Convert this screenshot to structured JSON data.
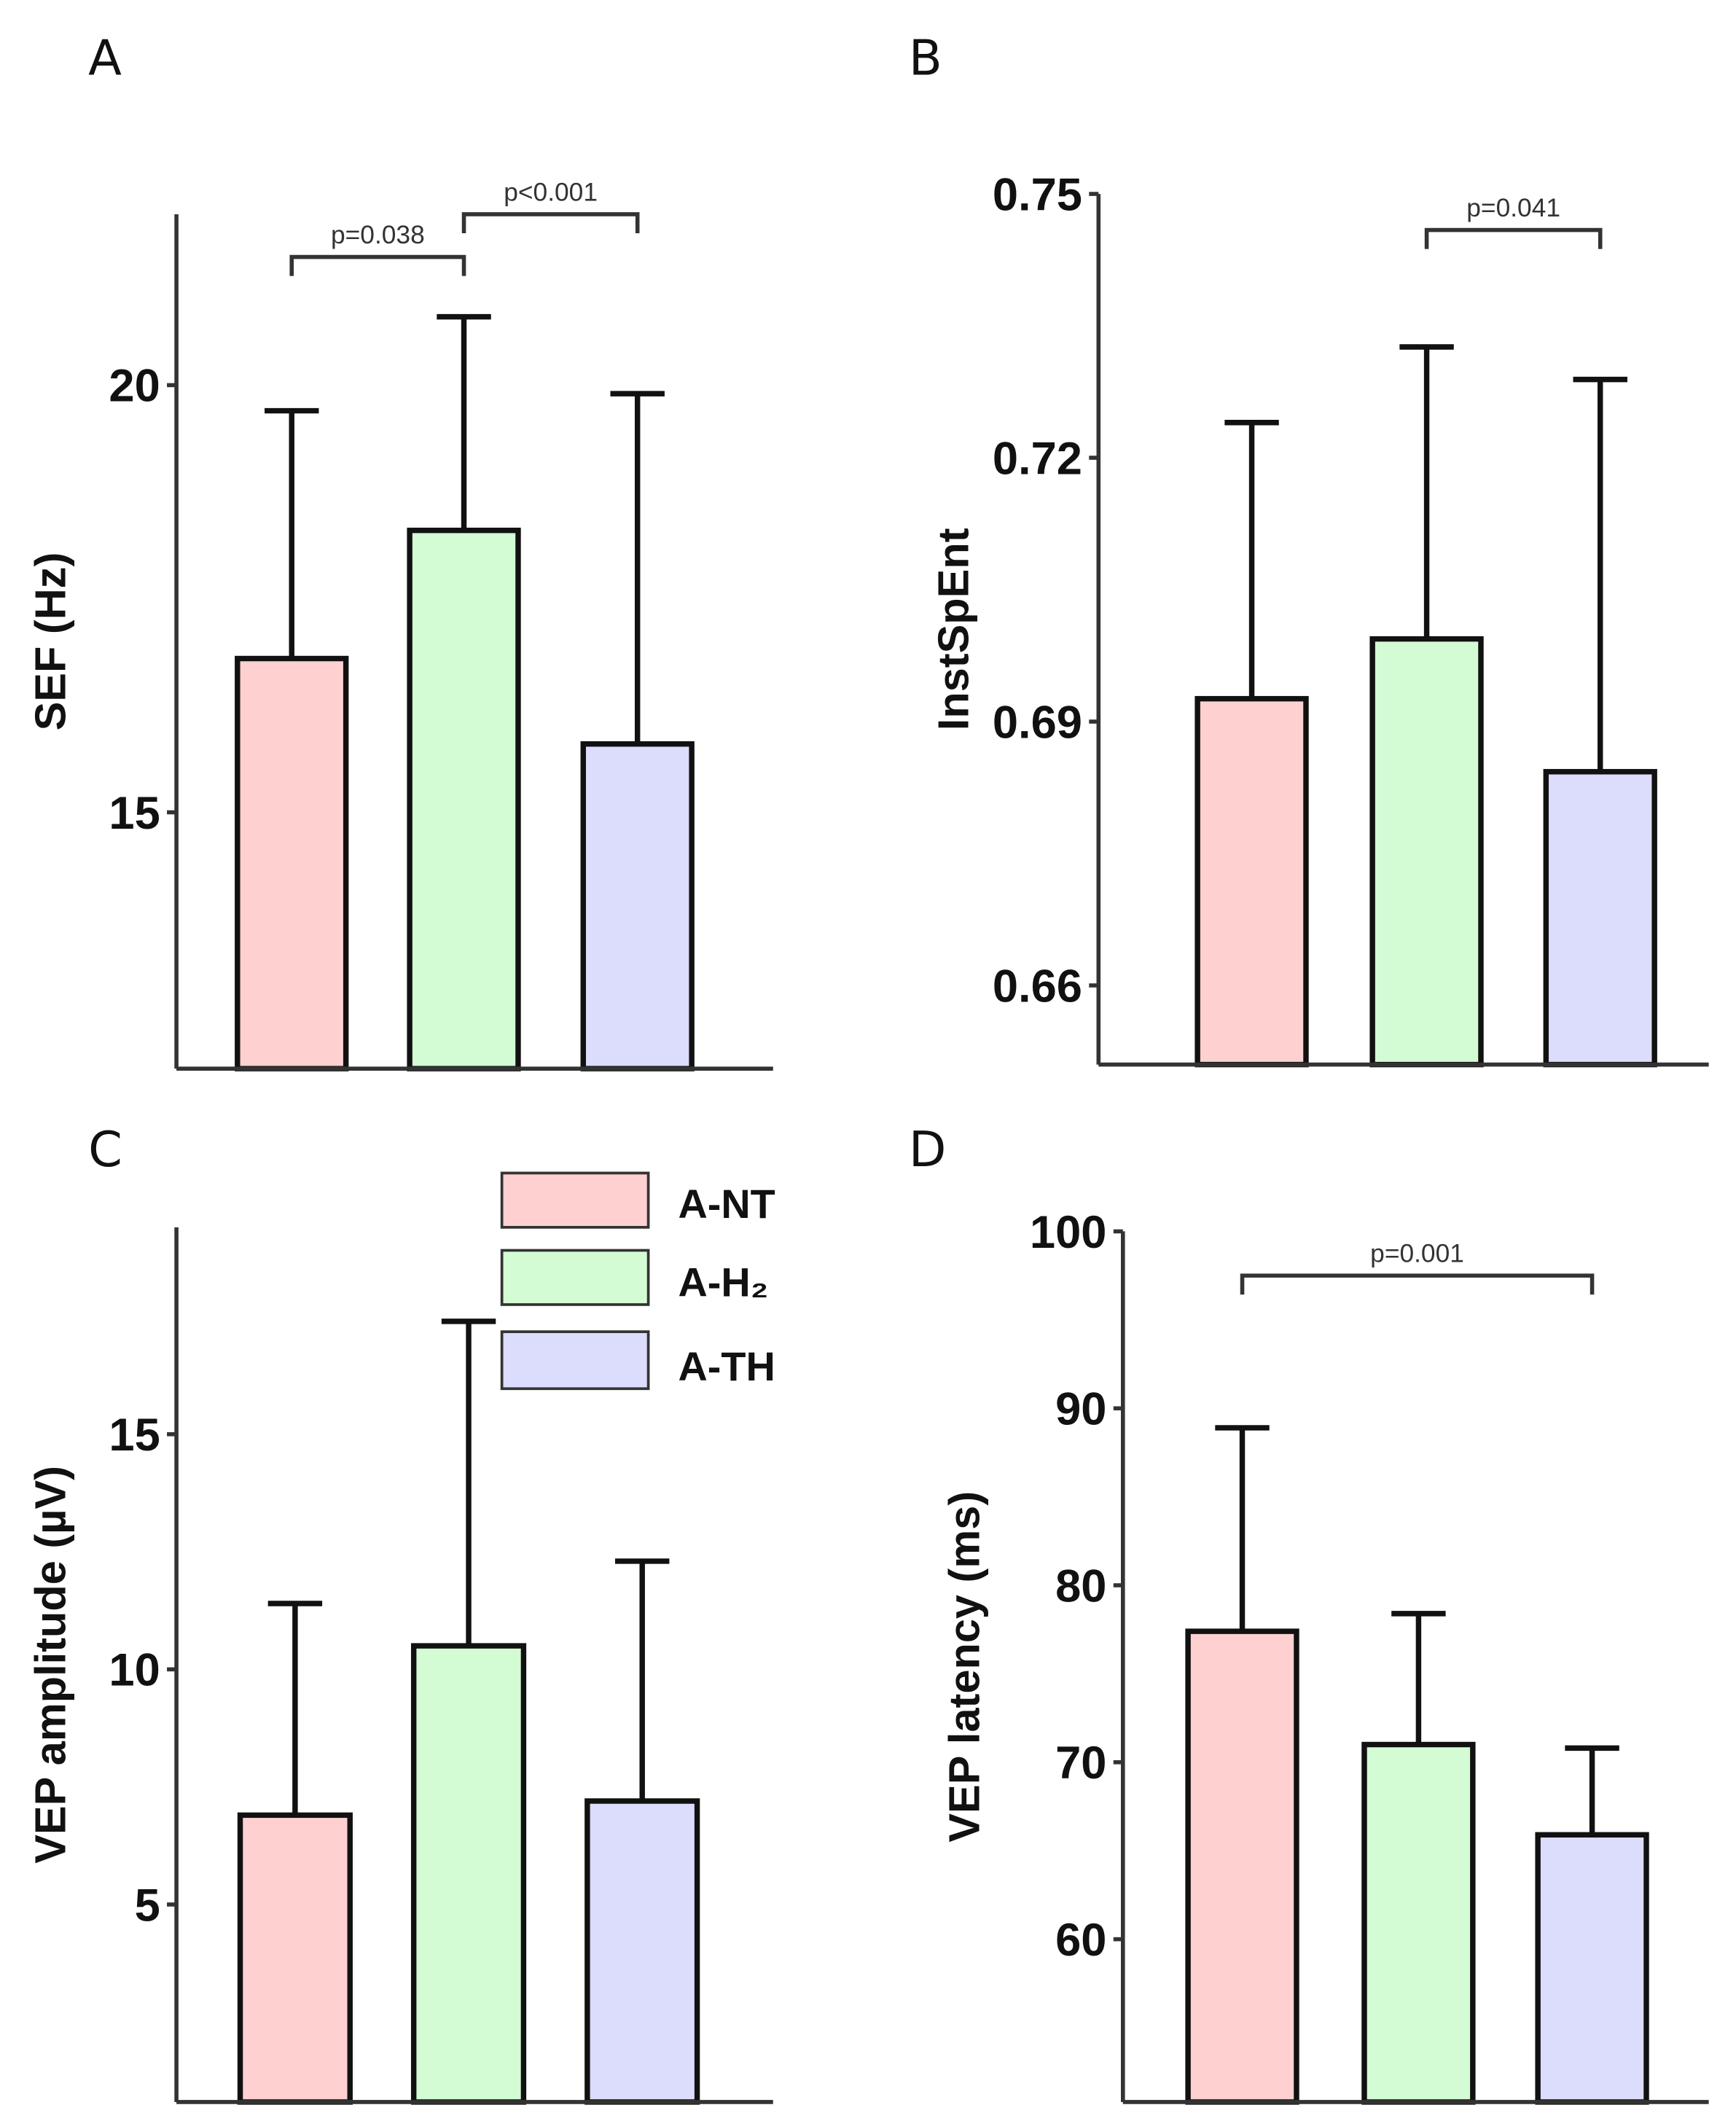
{
  "colors": {
    "A-NT": "#ffd0d0",
    "A-H2": "#d4fcd4",
    "A-TH": "#dcdcfc",
    "axis": "#333333",
    "bar_edge": "#111111"
  },
  "legend": {
    "items": [
      {
        "label": "A-NT",
        "color": "#ffd0d0"
      },
      {
        "label": "A-H₂",
        "color": "#d4fcd4"
      },
      {
        "label": "A-TH",
        "color": "#dcdcfc"
      }
    ]
  },
  "chart_data": [
    {
      "panel": "A",
      "type": "bar",
      "ylabel": "SEF (Hz)",
      "ylim": [
        12,
        22
      ],
      "yticks": [
        15,
        20
      ],
      "ytick_labels": [
        "15",
        "20"
      ],
      "categories": [
        "A-NT",
        "A-H2",
        "A-TH"
      ],
      "values": [
        16.8,
        18.3,
        15.8
      ],
      "error_upper": [
        19.7,
        20.8,
        19.9
      ],
      "annotations": [
        {
          "text": "p=0.038",
          "from": 0,
          "to": 1,
          "level": 21.5
        },
        {
          "text": "p<0.001",
          "from": 1,
          "to": 2,
          "level": 22.0
        }
      ]
    },
    {
      "panel": "B",
      "type": "bar",
      "ylabel": "InstSpEnt",
      "ylim": [
        0.651,
        0.75
      ],
      "yticks": [
        0.66,
        0.69,
        0.72,
        0.75
      ],
      "ytick_labels": [
        "0.66",
        "0.69",
        "0.72",
        "0.75"
      ],
      "categories": [
        "A-NT",
        "A-H2",
        "A-TH"
      ],
      "values": [
        0.6926,
        0.6994,
        0.6843
      ],
      "error_upper": [
        0.724,
        0.7326,
        0.7289
      ],
      "annotations": [
        {
          "text": "p=0.041",
          "from": 1,
          "to": 2,
          "level": 0.7459
        }
      ]
    },
    {
      "panel": "C",
      "type": "bar",
      "ylabel": "VEP amplitude (µV)",
      "ylim": [
        0.8,
        19.4
      ],
      "yticks": [
        5,
        10,
        15
      ],
      "ytick_labels": [
        "5",
        "10",
        "15"
      ],
      "categories": [
        "A-NT",
        "A-H2",
        "A-TH"
      ],
      "values": [
        6.9,
        10.5,
        7.2
      ],
      "error_upper": [
        11.4,
        17.4,
        12.3
      ],
      "annotations": []
    },
    {
      "panel": "D",
      "type": "bar",
      "ylabel": "VEP latency (ms)",
      "ylim": [
        50.8,
        100
      ],
      "yticks": [
        60,
        70,
        80,
        90,
        100
      ],
      "ytick_labels": [
        "60",
        "70",
        "80",
        "90",
        "100"
      ],
      "categories": [
        "A-NT",
        "A-H2",
        "A-TH"
      ],
      "values": [
        77.4,
        71.0,
        65.9
      ],
      "error_upper": [
        88.9,
        78.4,
        70.8
      ],
      "annotations": [
        {
          "text": "p=0.001",
          "from": 0,
          "to": 2,
          "level": 97.5
        }
      ]
    }
  ]
}
